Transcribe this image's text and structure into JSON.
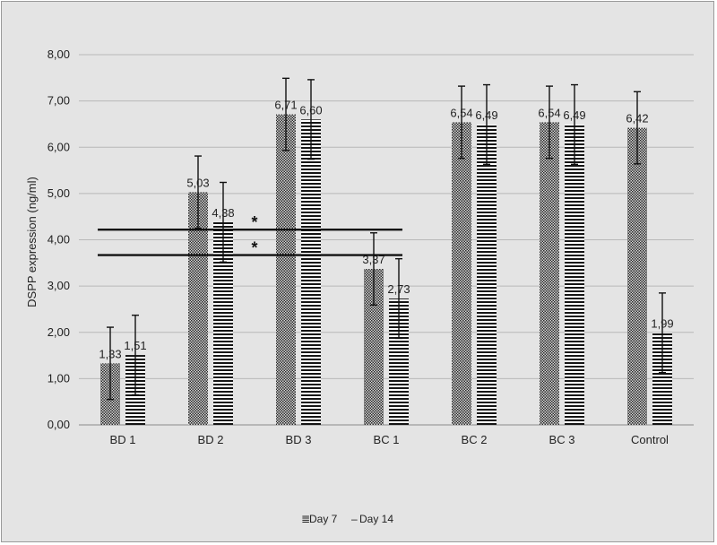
{
  "chart_data": {
    "type": "bar",
    "title": "",
    "xlabel": "",
    "ylabel": "DSPP expression (ng/ml)",
    "ylim": [
      0,
      8
    ],
    "yticks": [
      "0,00",
      "1,00",
      "2,00",
      "3,00",
      "4,00",
      "5,00",
      "6,00",
      "7,00",
      "8,00"
    ],
    "grid": true,
    "legend_position": "bottom",
    "categories": [
      "BD 1",
      "BD 2",
      "BD 3",
      "BC 1",
      "BC 2",
      "BC 3",
      "Control"
    ],
    "series": [
      {
        "name": "Day 7",
        "values": [
          1.33,
          5.03,
          6.71,
          3.37,
          6.54,
          6.54,
          6.42
        ],
        "labels": [
          "1,33",
          "5,03",
          "6,71",
          "3,37",
          "6,54",
          "6,54",
          "6,42"
        ],
        "error": [
          0.78,
          0.78,
          0.78,
          0.78,
          0.78,
          0.78,
          0.78
        ]
      },
      {
        "name": "Day 14",
        "values": [
          1.51,
          4.38,
          6.6,
          2.73,
          6.49,
          6.49,
          1.99
        ],
        "labels": [
          "1,51",
          "4,38",
          "6,60",
          "2,73",
          "6,49",
          "6,49",
          "1,99"
        ],
        "error": [
          0.86,
          0.86,
          0.86,
          0.86,
          0.86,
          0.86,
          0.86
        ]
      }
    ],
    "annotations": [
      {
        "text": "*",
        "line_y": 4.22,
        "from_category": 0,
        "to_category": 3
      },
      {
        "text": "*",
        "line_y": 3.67,
        "from_category": 0,
        "to_category": 3
      }
    ],
    "colors": {
      "background": "#e4e4e4",
      "grid": "#b8b8b8",
      "bar": "#1a1a1a"
    }
  }
}
